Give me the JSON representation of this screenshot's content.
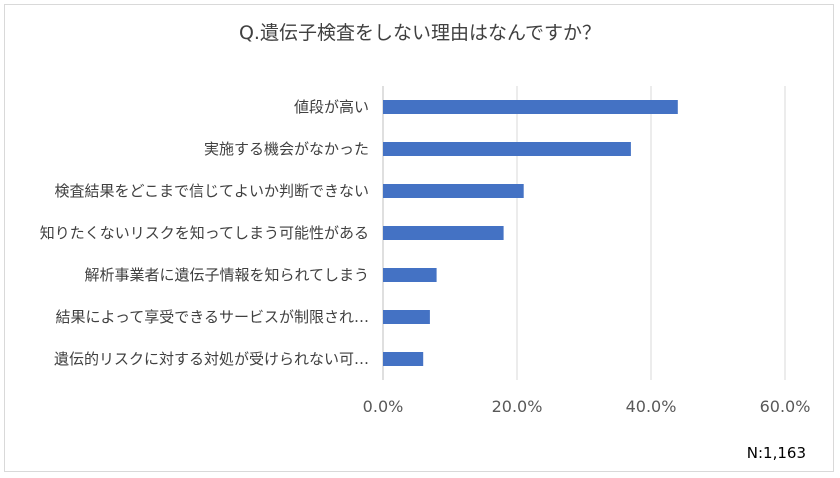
{
  "chart_data": {
    "type": "bar",
    "orientation": "horizontal",
    "title": "Q.遺伝子検査をしない理由はなんですか？",
    "categories": [
      "値段が高い",
      "実施する機会がなかった",
      "検査結果をどこまで信じてよいか判断できない",
      "知りたくないリスクを知ってしまう可能性がある",
      "解析事業者に遺伝子情報を知られてしまう",
      "結果によって享受できるサービスが制限され…",
      "遺伝的リスクに対する対処が受けられない可…"
    ],
    "values": [
      44.0,
      37.0,
      21.0,
      18.0,
      8.0,
      7.0,
      6.0
    ],
    "unit": "%",
    "xlim": [
      0,
      60
    ],
    "xticks": [
      "0.0%",
      "20.0%",
      "40.0%",
      "60.0%"
    ],
    "grid": true,
    "bar_color": "#4472c4",
    "note": "N:1,163"
  }
}
